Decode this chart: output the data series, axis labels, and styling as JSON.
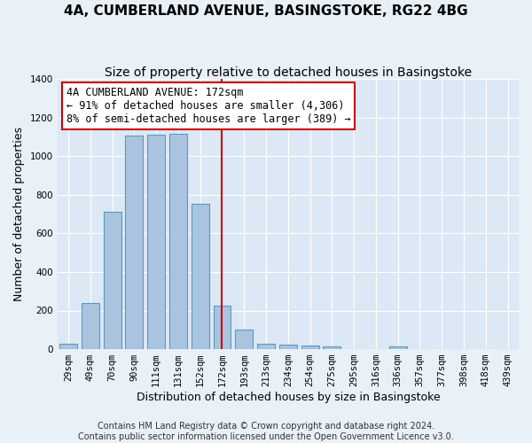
{
  "title": "4A, CUMBERLAND AVENUE, BASINGSTOKE, RG22 4BG",
  "subtitle": "Size of property relative to detached houses in Basingstoke",
  "xlabel": "Distribution of detached houses by size in Basingstoke",
  "ylabel": "Number of detached properties",
  "categories": [
    "29sqm",
    "49sqm",
    "70sqm",
    "90sqm",
    "111sqm",
    "131sqm",
    "152sqm",
    "172sqm",
    "193sqm",
    "213sqm",
    "234sqm",
    "254sqm",
    "275sqm",
    "295sqm",
    "316sqm",
    "336sqm",
    "357sqm",
    "377sqm",
    "398sqm",
    "418sqm",
    "439sqm"
  ],
  "values": [
    30,
    240,
    710,
    1105,
    1110,
    1115,
    755,
    225,
    100,
    30,
    22,
    20,
    13,
    0,
    0,
    12,
    0,
    0,
    0,
    0,
    0
  ],
  "bar_color": "#aac4e0",
  "bar_edge_color": "#5a9abf",
  "reference_line_x": 7,
  "reference_line_color": "#cc0000",
  "annotation_text": "4A CUMBERLAND AVENUE: 172sqm\n← 91% of detached houses are smaller (4,306)\n8% of semi-detached houses are larger (389) →",
  "annotation_box_color": "#ffffff",
  "annotation_box_edge_color": "#cc0000",
  "ylim": [
    0,
    1400
  ],
  "yticks": [
    0,
    200,
    400,
    600,
    800,
    1000,
    1200,
    1400
  ],
  "bg_color": "#e8f0f8",
  "plot_bg_color": "#dce8f5",
  "footer_text": "Contains HM Land Registry data © Crown copyright and database right 2024.\nContains public sector information licensed under the Open Government Licence v3.0.",
  "title_fontsize": 11,
  "subtitle_fontsize": 10,
  "xlabel_fontsize": 9,
  "ylabel_fontsize": 9,
  "tick_fontsize": 7.5,
  "annotation_fontsize": 8.5,
  "footer_fontsize": 7
}
